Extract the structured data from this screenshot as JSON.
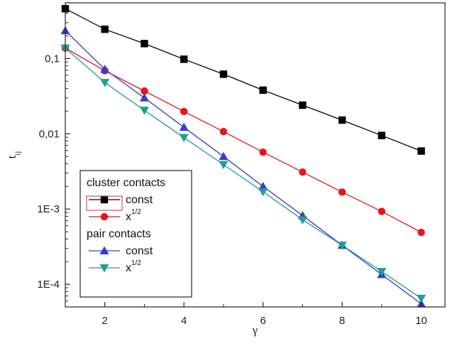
{
  "chart_data": {
    "type": "line",
    "title": "",
    "xlabel": "γ",
    "ylabel": "t",
    "ylabel_sub": "ij",
    "xlim": [
      1,
      10.6
    ],
    "ylim": [
      5e-05,
      0.55
    ],
    "yscale": "log",
    "x_ticks": [
      2,
      4,
      6,
      8,
      10
    ],
    "x_tick_labels": [
      "2",
      "4",
      "6",
      "8",
      "10"
    ],
    "y_ticks": [
      0.0001,
      0.001,
      0.01,
      0.1
    ],
    "y_tick_labels": [
      "1E-4",
      "1E-3",
      "0,01",
      "0,1"
    ],
    "grid": false,
    "legend": {
      "placement": "lower-left",
      "groups": [
        {
          "title": "cluster contacts",
          "entries": [
            {
              "series": 0,
              "label": "const",
              "label_sup": ""
            },
            {
              "series": 1,
              "label": "x",
              "label_sup": "1/2"
            }
          ]
        },
        {
          "title": "pair contacts",
          "entries": [
            {
              "series": 2,
              "label": "const",
              "label_sup": ""
            },
            {
              "series": 3,
              "label": "x",
              "label_sup": "1/2"
            }
          ]
        }
      ]
    },
    "x": [
      1,
      2,
      3,
      4,
      5,
      6,
      7,
      8,
      9,
      10
    ],
    "series": [
      {
        "group": "cluster contacts",
        "marker": "square",
        "color": "#000000",
        "values": [
          0.46,
          0.245,
          0.158,
          0.098,
          0.062,
          0.038,
          0.024,
          0.0152,
          0.0095,
          0.0059
        ]
      },
      {
        "group": "cluster contacts",
        "marker": "circle",
        "color": "#e8141c",
        "values": [
          0.138,
          0.069,
          0.037,
          0.0198,
          0.0107,
          0.0057,
          0.0031,
          0.00168,
          0.00093,
          0.00049
        ]
      },
      {
        "group": "pair contacts",
        "marker": "triangle-up",
        "color": "#3a3ad0",
        "values": [
          0.235,
          0.072,
          0.03,
          0.0122,
          0.005,
          0.002,
          0.00082,
          0.00033,
          0.000135,
          5.5e-05
        ]
      },
      {
        "group": "pair contacts",
        "marker": "triangle-down",
        "color": "#1f9e92",
        "values": [
          0.138,
          0.048,
          0.0205,
          0.0089,
          0.0039,
          0.0017,
          0.00072,
          0.00033,
          0.000148,
          6.5e-05
        ]
      }
    ]
  }
}
